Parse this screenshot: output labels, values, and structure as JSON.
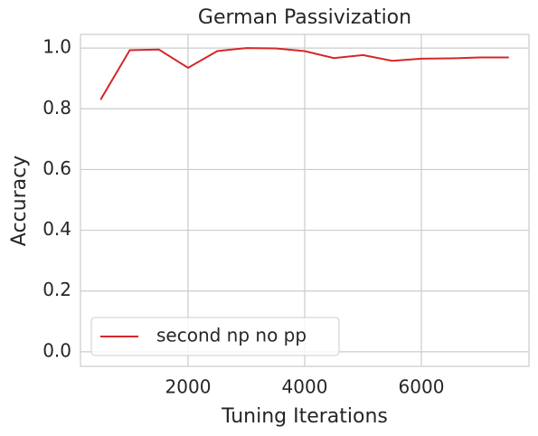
{
  "chart_data": {
    "type": "line",
    "title": "German Passivization",
    "xlabel": "Tuning Iterations",
    "ylabel": "Accuracy",
    "x": [
      500,
      1000,
      1500,
      2000,
      2500,
      3000,
      3500,
      4000,
      4500,
      5000,
      5500,
      6000,
      6500,
      7000,
      7500
    ],
    "series": [
      {
        "name": "second np no pp",
        "color": "#d62728",
        "values": [
          0.83,
          0.993,
          0.995,
          0.935,
          0.99,
          1.0,
          0.999,
          0.99,
          0.967,
          0.977,
          0.958,
          0.965,
          0.966,
          0.969,
          0.969
        ]
      }
    ],
    "xlim": [
      155,
      7845
    ],
    "ylim": [
      -0.048,
      1.045
    ],
    "xticks": [
      2000,
      4000,
      6000
    ],
    "yticks": [
      {
        "value": 0,
        "label": "0.0"
      },
      {
        "value": 0.2,
        "label": "0.2"
      },
      {
        "value": 0.4,
        "label": "0.4"
      },
      {
        "value": 0.6,
        "label": "0.6"
      },
      {
        "value": 0.8,
        "label": "0.8"
      },
      {
        "value": 1.0,
        "label": "1.0"
      }
    ],
    "grid": true,
    "legend": "lower left"
  }
}
